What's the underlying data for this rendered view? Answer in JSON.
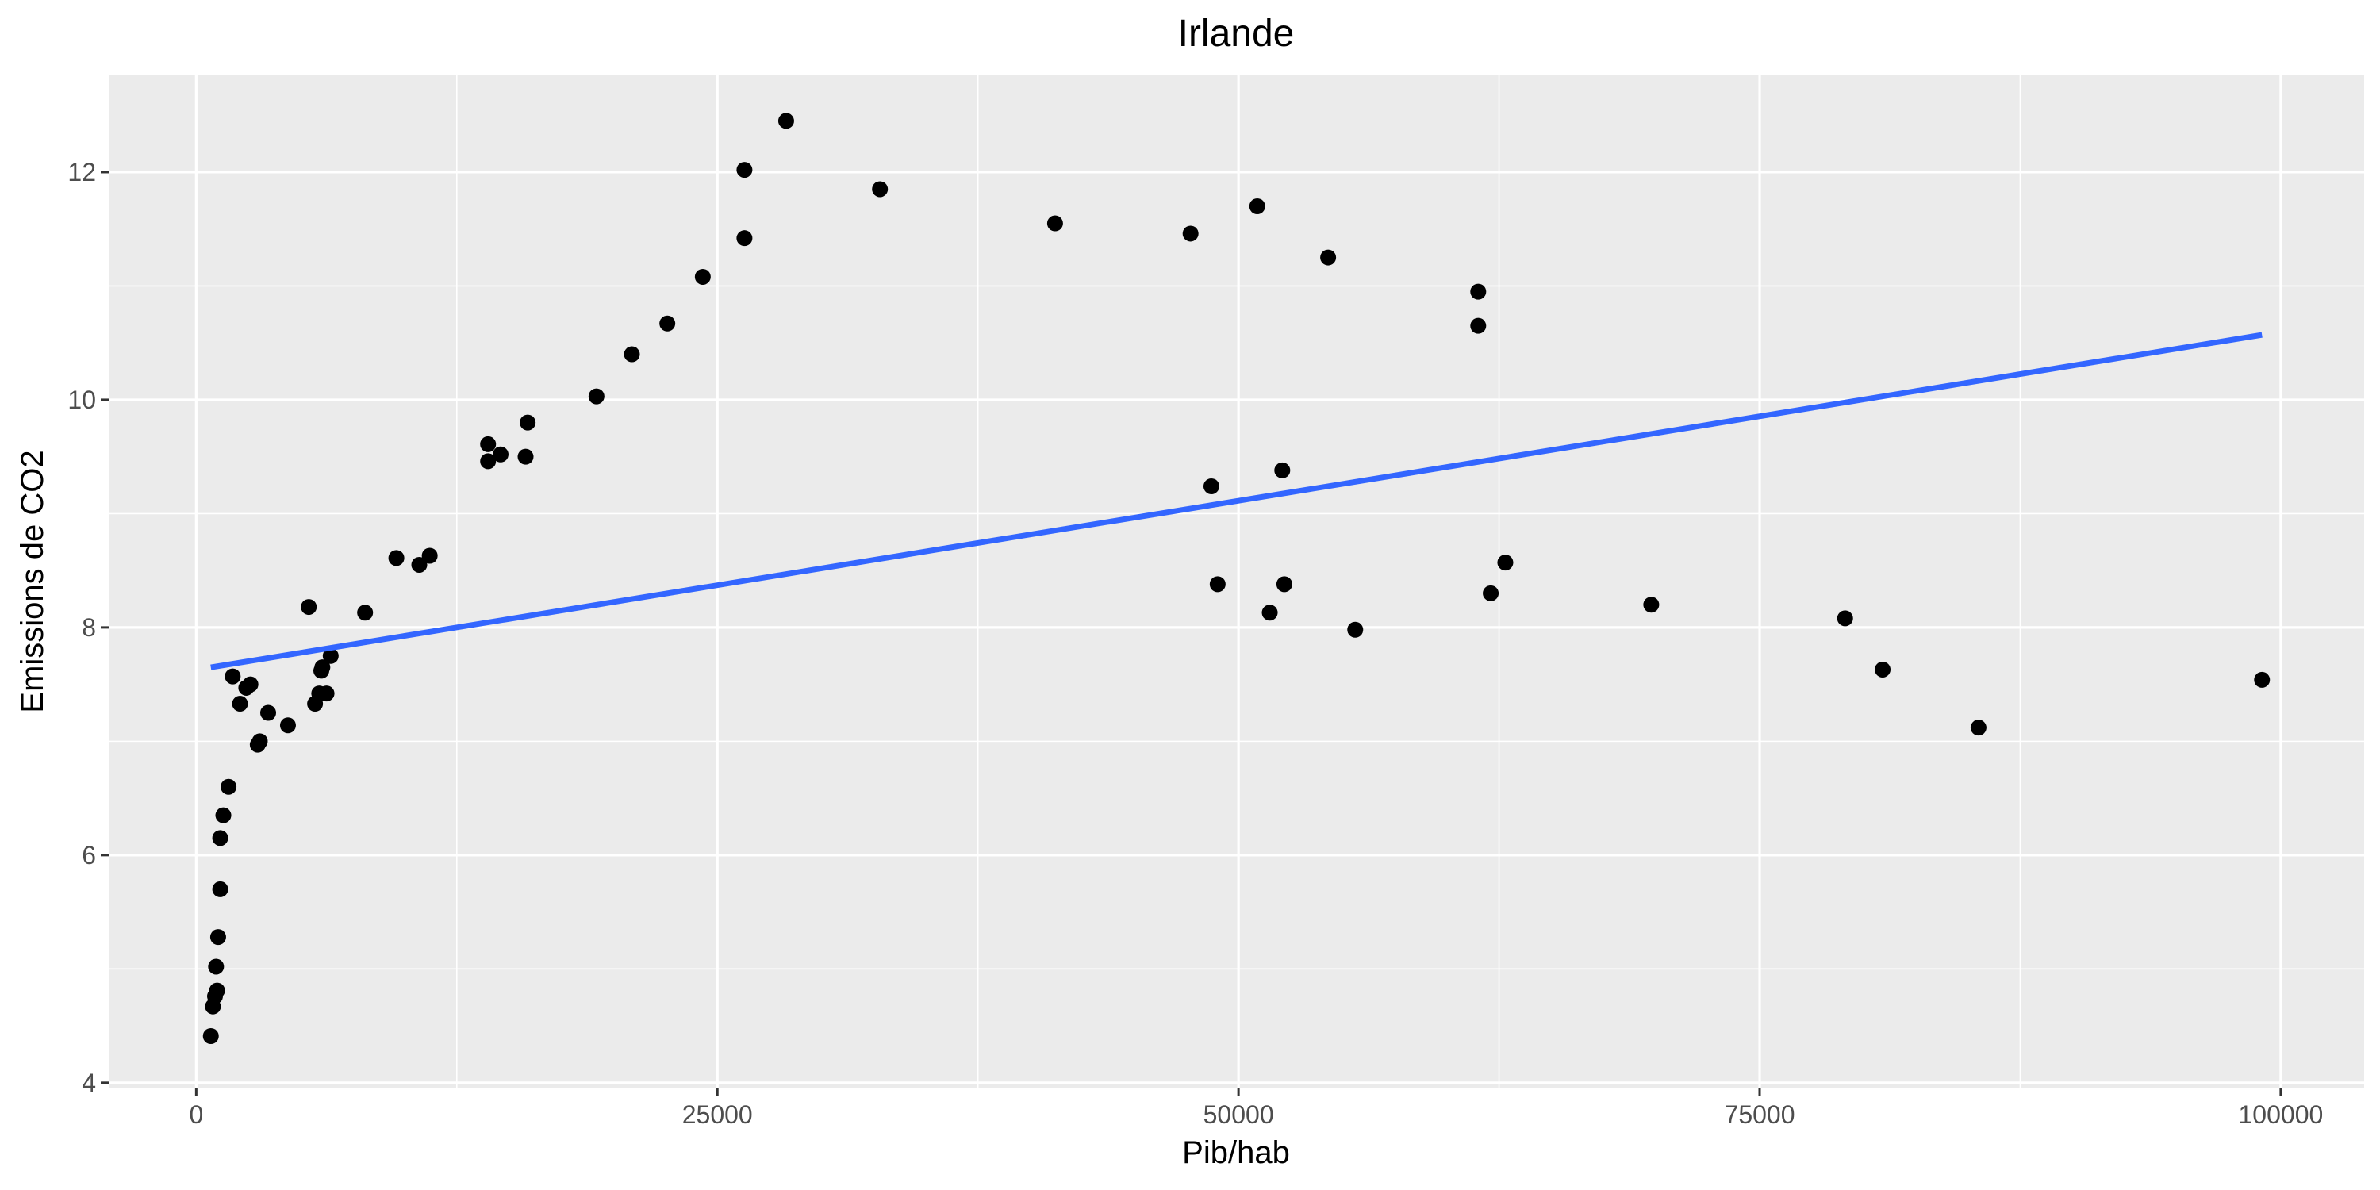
{
  "chart_data": {
    "type": "scatter",
    "title": "Irlande",
    "xlabel": "Pib/hab",
    "ylabel": "Emissions de CO2",
    "xlim": [
      -4200,
      104000
    ],
    "ylim": [
      3.95,
      12.85
    ],
    "x_ticks": [
      0,
      25000,
      50000,
      75000,
      100000
    ],
    "x_tick_labels": [
      "0",
      "25000",
      "50000",
      "75000",
      "100000"
    ],
    "y_ticks": [
      4,
      6,
      8,
      10,
      12
    ],
    "y_tick_labels": [
      "4",
      "6",
      "8",
      "10",
      "12"
    ],
    "grid": true,
    "legend": "none",
    "series": [
      {
        "points": [
          [
            700,
            4.41
          ],
          [
            800,
            4.67
          ],
          [
            900,
            4.76
          ],
          [
            1000,
            4.81
          ],
          [
            950,
            5.02
          ],
          [
            1050,
            5.28
          ],
          [
            1150,
            5.7
          ],
          [
            1150,
            6.15
          ],
          [
            1300,
            6.35
          ],
          [
            1550,
            6.6
          ],
          [
            1750,
            7.57
          ],
          [
            2100,
            7.33
          ],
          [
            2400,
            7.47
          ],
          [
            2600,
            7.5
          ],
          [
            2950,
            6.97
          ],
          [
            3050,
            7.0
          ],
          [
            3450,
            7.25
          ],
          [
            4400,
            7.14
          ],
          [
            5400,
            8.18
          ],
          [
            5700,
            7.33
          ],
          [
            5900,
            7.42
          ],
          [
            6000,
            7.62
          ],
          [
            6050,
            7.65
          ],
          [
            6250,
            7.42
          ],
          [
            6450,
            7.75
          ],
          [
            8100,
            8.13
          ],
          [
            9600,
            8.61
          ],
          [
            10700,
            8.55
          ],
          [
            11200,
            8.63
          ],
          [
            14000,
            9.46
          ],
          [
            14000,
            9.61
          ],
          [
            14600,
            9.52
          ],
          [
            15800,
            9.5
          ],
          [
            15900,
            9.8
          ],
          [
            19200,
            10.03
          ],
          [
            20900,
            10.4
          ],
          [
            22600,
            10.67
          ],
          [
            24300,
            11.08
          ],
          [
            26300,
            11.42
          ],
          [
            26300,
            12.02
          ],
          [
            28300,
            12.45
          ],
          [
            32800,
            11.85
          ],
          [
            41200,
            11.55
          ],
          [
            47700,
            11.46
          ],
          [
            48700,
            9.24
          ],
          [
            49000,
            8.38
          ],
          [
            50900,
            11.7
          ],
          [
            51500,
            8.13
          ],
          [
            52100,
            9.38
          ],
          [
            52200,
            8.38
          ],
          [
            54300,
            11.25
          ],
          [
            55600,
            7.98
          ],
          [
            61500,
            10.65
          ],
          [
            61500,
            10.95
          ],
          [
            62100,
            8.3
          ],
          [
            62800,
            8.57
          ],
          [
            69800,
            8.2
          ],
          [
            79100,
            8.08
          ],
          [
            80900,
            7.63
          ],
          [
            85500,
            7.12
          ],
          [
            99100,
            7.54
          ]
        ]
      }
    ],
    "trend_line": {
      "x": [
        700,
        99100
      ],
      "y": [
        7.65,
        10.57
      ]
    },
    "colors": {
      "panel": "#ebebeb",
      "grid_major": "#ffffff",
      "point": "#000000",
      "trend": "#3366ff",
      "tick": "#333333",
      "tick_label": "#4d4d4d"
    }
  }
}
